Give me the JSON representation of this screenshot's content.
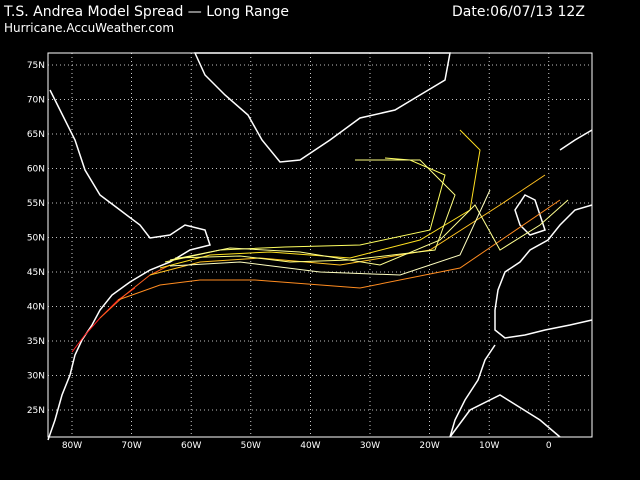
{
  "header": {
    "title": "T.S. Andrea Model Spread — Long Range",
    "date": "Date:06/07/13 12Z",
    "source": "Hurricane.AccuWeather.com"
  },
  "map": {
    "lat_labels": [
      "75N",
      "70N",
      "65N",
      "60N",
      "55N",
      "50N",
      "45N",
      "40N",
      "35N",
      "30N",
      "25N"
    ],
    "lon_labels": [
      "80W",
      "70W",
      "60W",
      "50W",
      "40W",
      "30W",
      "20W",
      "10W",
      "0"
    ]
  }
}
